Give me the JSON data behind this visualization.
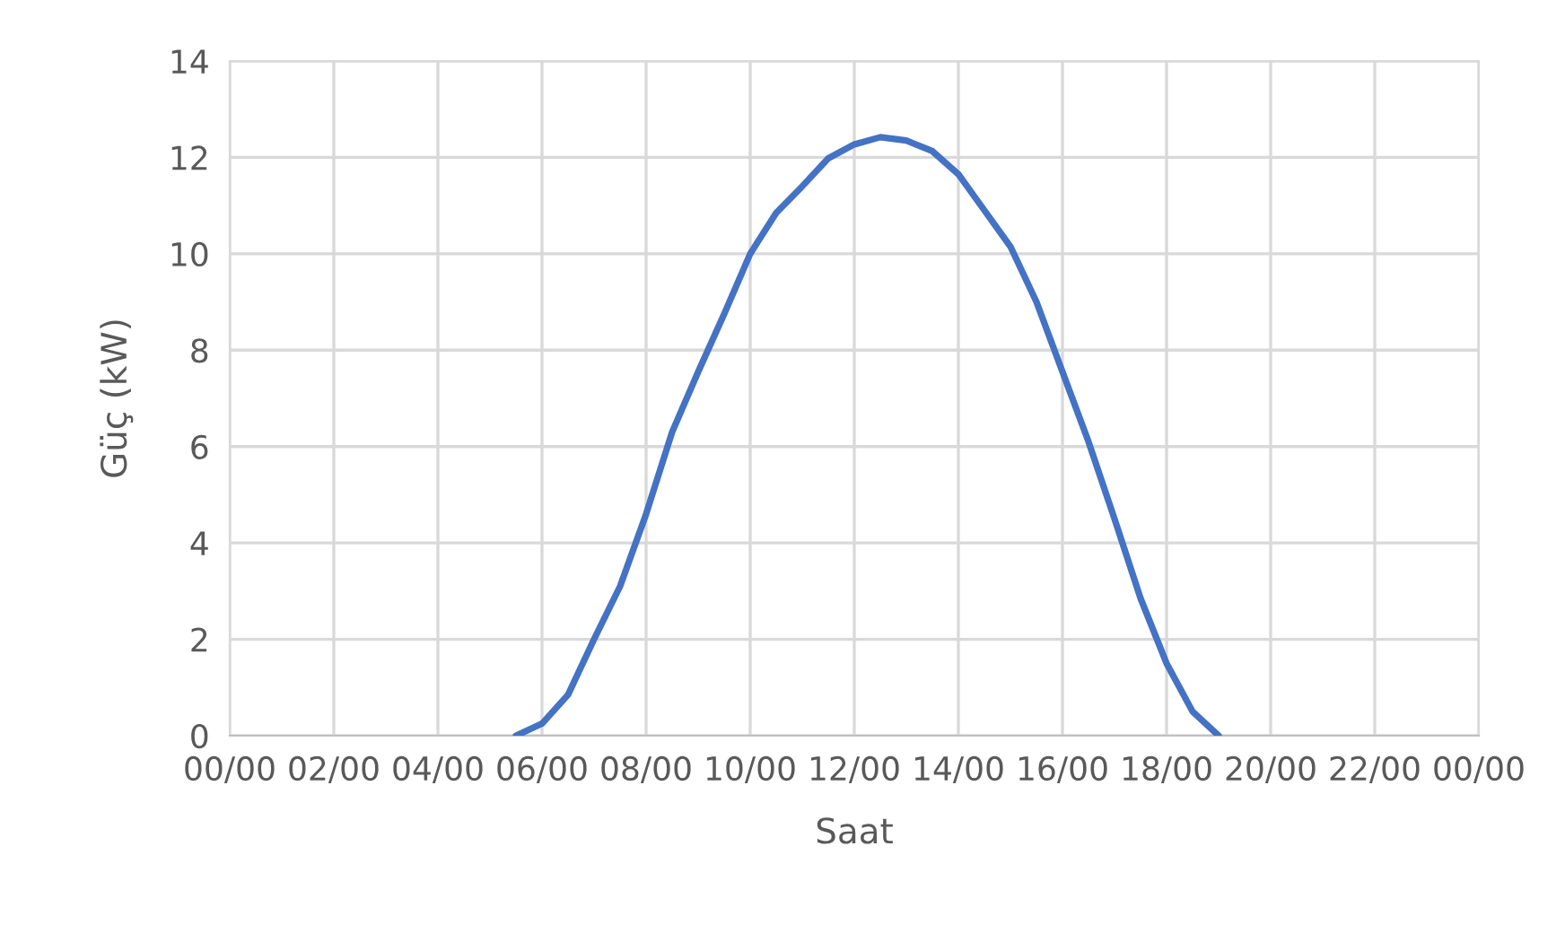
{
  "chart_data": {
    "type": "line",
    "xlabel": "Saat",
    "ylabel": "Güç (kW)",
    "ylim": [
      0,
      14
    ],
    "yticks": [
      0,
      2,
      4,
      6,
      8,
      10,
      12,
      14
    ],
    "categories": [
      "00/00",
      null,
      null,
      null,
      "02/00",
      null,
      null,
      null,
      "04/00",
      null,
      null,
      null,
      "06/00",
      null,
      null,
      null,
      "08/00",
      null,
      null,
      null,
      "10/00",
      null,
      null,
      null,
      "12/00",
      null,
      null,
      null,
      "14/00",
      null,
      null,
      null,
      "16/00",
      null,
      null,
      null,
      "18/00",
      null,
      null,
      null,
      "20/00",
      null,
      null,
      null,
      "22/00",
      null,
      null,
      null,
      "00/00"
    ],
    "grid": true,
    "legend": false,
    "marker": "none",
    "line_style": "solid",
    "series": [
      {
        "color": "#4472c4",
        "values": [
          null,
          null,
          null,
          null,
          null,
          null,
          null,
          null,
          null,
          null,
          null,
          0,
          0.25,
          0.85,
          2.0,
          3.1,
          4.6,
          6.3,
          7.55,
          8.75,
          10.0,
          10.85,
          11.4,
          11.98,
          12.27,
          12.42,
          12.35,
          12.13,
          11.65,
          10.9,
          10.15,
          9.0,
          7.55,
          6.1,
          4.5,
          2.85,
          1.5,
          0.5,
          0,
          null,
          null,
          null,
          null,
          null,
          null,
          null,
          null,
          null,
          null
        ]
      }
    ]
  }
}
